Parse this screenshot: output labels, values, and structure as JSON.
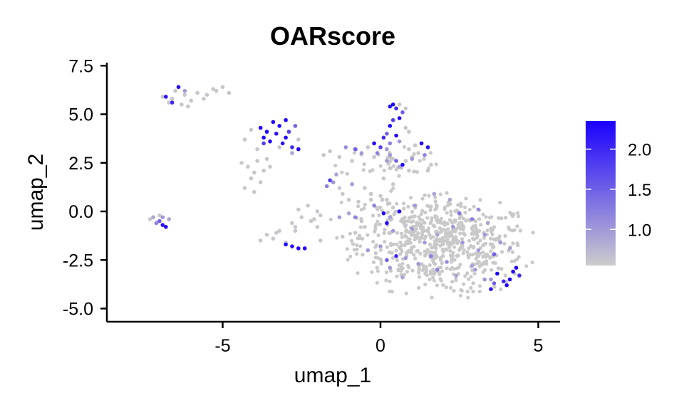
{
  "chart_data": {
    "type": "scatter",
    "title": "OARscore",
    "xlabel": "umap_1",
    "ylabel": "umap_2",
    "xlim": [
      -8.5,
      5.7
    ],
    "ylim": [
      -5.6,
      7.6
    ],
    "xticks": [
      -5,
      0,
      5
    ],
    "xtick_labels": [
      "-5",
      "0",
      "5"
    ],
    "yticks": [
      -5,
      -2.5,
      0,
      2.5,
      5,
      7.5
    ],
    "ytick_labels": [
      "-5.0",
      "-2.5",
      "0.0",
      "2.5",
      "5.0",
      "7.5"
    ],
    "grid": false,
    "legend_position": "right",
    "colorbar": {
      "range": [
        0.55,
        2.35
      ],
      "ticks": [
        1.0,
        1.5,
        2.0
      ],
      "tick_labels": [
        "1.0",
        "1.5",
        "2.0"
      ],
      "low_color": "#cccccc",
      "high_color": "#1b00ff"
    },
    "points": [
      [
        -6.9,
        5.9,
        0.6
      ],
      [
        -6.6,
        5.8,
        0.6
      ],
      [
        -6.3,
        5.5,
        0.6
      ],
      [
        -6.0,
        5.7,
        0.6
      ],
      [
        -5.8,
        6.1,
        0.6
      ],
      [
        -5.5,
        6.0,
        0.6
      ],
      [
        -5.2,
        6.2,
        0.6
      ],
      [
        -5.0,
        6.4,
        0.6
      ],
      [
        -6.7,
        5.6,
        0.6
      ],
      [
        -6.2,
        6.0,
        0.6
      ],
      [
        -5.6,
        5.8,
        0.6
      ],
      [
        -6.5,
        6.2,
        0.6
      ],
      [
        -6.1,
        5.4,
        0.6
      ],
      [
        -5.3,
        6.3,
        0.6
      ],
      [
        -4.8,
        6.1,
        0.6
      ],
      [
        -6.8,
        5.9,
        2.2
      ],
      [
        -6.4,
        6.4,
        2.3
      ],
      [
        -6.6,
        5.6,
        2.0
      ],
      [
        -6.2,
        6.2,
        1.0
      ],
      [
        -4.2,
        2.3,
        0.6
      ],
      [
        -4.0,
        2.0,
        0.6
      ],
      [
        -3.9,
        2.6,
        0.6
      ],
      [
        -4.1,
        1.7,
        0.6
      ],
      [
        -3.8,
        1.5,
        0.6
      ],
      [
        -3.7,
        2.1,
        0.6
      ],
      [
        -4.3,
        1.2,
        0.6
      ],
      [
        -4.0,
        1.0,
        0.6
      ],
      [
        -3.6,
        2.7,
        0.6
      ],
      [
        -4.4,
        2.5,
        0.6
      ],
      [
        -3.9,
        3.2,
        0.6
      ],
      [
        -4.3,
        3.7,
        0.6
      ],
      [
        -4.1,
        4.2,
        0.6
      ],
      [
        -3.5,
        2.3,
        0.6
      ],
      [
        -3.8,
        4.3,
        2.3
      ],
      [
        -3.6,
        4.1,
        2.3
      ],
      [
        -3.4,
        4.6,
        2.3
      ],
      [
        -3.2,
        4.4,
        2.3
      ],
      [
        -3.0,
        4.7,
        2.3
      ],
      [
        -3.3,
        4.0,
        2.2
      ],
      [
        -3.7,
        3.8,
        2.3
      ],
      [
        -3.1,
        3.5,
        2.2
      ],
      [
        -2.8,
        3.3,
        2.0
      ],
      [
        -2.6,
        3.2,
        2.3
      ],
      [
        -2.9,
        4.1,
        1.8
      ],
      [
        -3.5,
        3.6,
        2.3
      ],
      [
        -3.7,
        3.5,
        1.8
      ],
      [
        -3.0,
        3.8,
        2.3
      ],
      [
        -2.7,
        4.4,
        1.5
      ],
      [
        -2.8,
        3.0,
        0.9
      ],
      [
        -3.2,
        3.3,
        0.6
      ],
      [
        -2.6,
        3.7,
        0.6
      ],
      [
        -7.3,
        -0.4,
        0.6
      ],
      [
        -7.2,
        -0.3,
        0.9
      ],
      [
        -7.1,
        -0.6,
        1.2
      ],
      [
        -7.0,
        -0.5,
        1.5
      ],
      [
        -6.9,
        -0.7,
        2.2
      ],
      [
        -6.8,
        -0.8,
        2.3
      ],
      [
        -6.7,
        -0.4,
        0.9
      ],
      [
        -7.0,
        -0.2,
        0.6
      ],
      [
        -6.9,
        -0.3,
        1.0
      ],
      [
        -3.6,
        -1.2,
        0.6
      ],
      [
        -3.4,
        -1.4,
        0.6
      ],
      [
        -3.2,
        -1.0,
        0.6
      ],
      [
        -3.8,
        -1.5,
        0.6
      ],
      [
        -3.0,
        -1.6,
        0.6
      ],
      [
        -2.7,
        -1.0,
        0.6
      ],
      [
        -3.3,
        -1.1,
        0.6
      ],
      [
        -3.0,
        -1.7,
        2.3
      ],
      [
        -2.8,
        -1.8,
        2.2
      ],
      [
        -2.6,
        -1.9,
        2.3
      ],
      [
        -2.4,
        -1.9,
        2.3
      ],
      [
        -2.5,
        -0.3,
        0.6
      ],
      [
        -2.2,
        -0.5,
        0.6
      ],
      [
        -2.0,
        0.0,
        0.6
      ],
      [
        -2.3,
        0.3,
        0.6
      ],
      [
        -1.9,
        -0.2,
        0.6
      ],
      [
        -2.6,
        0.1,
        0.6
      ],
      [
        -2.8,
        -0.6,
        0.6
      ],
      [
        -1.9,
        -1.5,
        0.6
      ],
      [
        -2.0,
        -0.8,
        0.6
      ],
      [
        -2.1,
        -0.4,
        0.6
      ],
      [
        -2.7,
        -0.8,
        0.6
      ],
      [
        -1.7,
        1.3,
        1.2
      ],
      [
        -1.6,
        1.6,
        1.8
      ],
      [
        -1.5,
        1.5,
        1.0
      ],
      [
        -1.4,
        1.9,
        0.9
      ],
      [
        -1.3,
        1.2,
        0.6
      ],
      [
        -1.0,
        0.6,
        0.6
      ],
      [
        -0.9,
        1.4,
        1.0
      ],
      [
        -1.2,
        0.9,
        0.6
      ],
      [
        -0.5,
        1.2,
        0.6
      ],
      [
        -0.7,
        0.5,
        0.6
      ],
      [
        -0.3,
        0.9,
        0.6
      ],
      [
        0.1,
        1.7,
        0.6
      ],
      [
        0.4,
        1.4,
        0.6
      ],
      [
        -1.3,
        -0.3,
        1.0
      ],
      [
        -1.0,
        -0.1,
        0.9
      ],
      [
        -0.8,
        -0.3,
        1.2
      ],
      [
        -0.5,
        -0.8,
        0.6
      ],
      [
        -0.8,
        -1.1,
        0.6
      ],
      [
        -1.2,
        -1.3,
        0.6
      ],
      [
        -0.6,
        -0.5,
        0.6
      ],
      [
        -1.1,
        3.3,
        1.1
      ],
      [
        -0.8,
        3.2,
        1.5
      ],
      [
        -0.6,
        3.0,
        1.0
      ],
      [
        -0.9,
        2.6,
        0.6
      ],
      [
        -1.3,
        2.8,
        0.6
      ],
      [
        -0.4,
        3.3,
        0.6
      ],
      [
        -0.2,
        2.8,
        0.6
      ],
      [
        -1.6,
        3.1,
        0.6
      ],
      [
        -1.8,
        2.9,
        0.6
      ],
      [
        0.3,
        5.4,
        2.2
      ],
      [
        0.4,
        5.5,
        2.3
      ],
      [
        0.5,
        5.3,
        2.0
      ],
      [
        0.6,
        5.5,
        0.6
      ],
      [
        0.7,
        5.1,
        1.5
      ],
      [
        0.8,
        5.3,
        0.6
      ],
      [
        0.6,
        4.8,
        2.3
      ],
      [
        0.4,
        4.7,
        1.8
      ],
      [
        0.3,
        4.4,
        2.3
      ],
      [
        0.2,
        4.0,
        1.5
      ],
      [
        0.1,
        3.8,
        2.0
      ],
      [
        0.5,
        3.9,
        2.3
      ],
      [
        0.3,
        3.5,
        1.2
      ],
      [
        0.2,
        3.2,
        1.0
      ],
      [
        0.6,
        3.6,
        1.0
      ],
      [
        0.8,
        4.3,
        0.6
      ],
      [
        0.9,
        4.1,
        0.6
      ],
      [
        -0.2,
        3.5,
        2.3
      ],
      [
        0.0,
        3.3,
        1.8
      ],
      [
        -0.1,
        3.0,
        1.2
      ],
      [
        0.3,
        2.9,
        1.0
      ],
      [
        0.5,
        2.6,
        1.5
      ],
      [
        0.6,
        2.3,
        0.9
      ],
      [
        0.8,
        2.6,
        0.6
      ],
      [
        0.9,
        3.2,
        0.6
      ],
      [
        1.2,
        3.0,
        0.6
      ],
      [
        1.1,
        3.4,
        0.6
      ],
      [
        0.9,
        2.1,
        0.6
      ],
      [
        1.5,
        3.3,
        2.2
      ],
      [
        1.3,
        3.5,
        2.3
      ],
      [
        1.4,
        2.9,
        1.2
      ],
      [
        1.6,
        2.4,
        0.6
      ],
      [
        0.2,
        2.6,
        1.0
      ],
      [
        0.7,
        2.4,
        2.3
      ],
      [
        1.0,
        2.7,
        1.0
      ],
      [
        1.5,
        2.1,
        0.6
      ],
      [
        -0.2,
        0.3,
        1.2
      ],
      [
        0.0,
        0.8,
        0.6
      ],
      [
        -0.3,
        0.6,
        0.6
      ],
      [
        0.4,
        0.2,
        0.6
      ],
      [
        0.2,
        0.6,
        0.6
      ],
      [
        0.2,
        -0.6,
        2.3
      ],
      [
        0.6,
        0.0,
        2.3
      ],
      [
        0.3,
        -0.3,
        0.9
      ],
      [
        0.4,
        -1.0,
        1.0
      ],
      [
        0.8,
        -0.7,
        0.6
      ],
      [
        0.1,
        -0.1,
        2.3
      ],
      [
        -0.4,
        -2.0,
        1.0
      ],
      [
        0.0,
        -1.8,
        1.0
      ],
      [
        0.5,
        -2.3,
        2.0
      ],
      [
        0.3,
        -2.9,
        1.0
      ],
      [
        0.2,
        -2.5,
        1.5
      ],
      [
        1.4,
        -1.6,
        1.0
      ],
      [
        1.6,
        -2.3,
        1.2
      ],
      [
        1.8,
        -1.2,
        0.9
      ],
      [
        2.1,
        -2.6,
        1.1
      ],
      [
        2.3,
        -0.8,
        1.0
      ],
      [
        2.6,
        -1.6,
        1.0
      ],
      [
        2.9,
        -0.4,
        1.2
      ],
      [
        3.1,
        -2.0,
        1.0
      ],
      [
        3.3,
        -1.2,
        1.0
      ],
      [
        3.6,
        -2.2,
        1.5
      ],
      [
        3.8,
        -1.6,
        1.0
      ],
      [
        3.0,
        -3.0,
        1.0
      ],
      [
        1.8,
        -3.0,
        1.2
      ],
      [
        1.0,
        -0.9,
        1.0
      ],
      [
        2.5,
        -0.1,
        1.3
      ],
      [
        1.1,
        0.3,
        1.0
      ],
      [
        1.7,
        0.9,
        0.9
      ],
      [
        2.2,
        0.6,
        0.9
      ],
      [
        3.1,
        0.1,
        1.1
      ],
      [
        2.9,
        -2.8,
        0.9
      ],
      [
        0.8,
        -2.4,
        1.0
      ],
      [
        4.1,
        -1.9,
        0.9
      ],
      [
        3.5,
        -3.5,
        1.0
      ],
      [
        2.4,
        -3.3,
        0.9
      ],
      [
        1.2,
        -2.7,
        1.0
      ],
      [
        0.7,
        -3.4,
        0.9
      ],
      [
        3.4,
        -0.6,
        0.9
      ],
      [
        3.5,
        -4.0,
        2.2
      ],
      [
        3.7,
        -3.2,
        2.3
      ],
      [
        3.9,
        -3.6,
        2.0
      ],
      [
        4.0,
        -3.8,
        2.3
      ],
      [
        4.1,
        -3.5,
        2.3
      ],
      [
        4.2,
        -3.1,
        2.3
      ],
      [
        4.3,
        -2.9,
        2.3
      ],
      [
        4.4,
        -3.3,
        2.0
      ],
      [
        3.6,
        -3.7,
        1.5
      ],
      [
        3.3,
        -3.5,
        1.0
      ]
    ]
  },
  "mask_clusters": [
    {
      "cx": 2.0,
      "cy": -1.7,
      "sx": 2.6,
      "sy": 2.5,
      "n": 580,
      "angle": -0.15,
      "xmin": -1.6,
      "xmax": 4.9,
      "ymin": -4.6,
      "ymax": 1.0
    },
    {
      "cx": 0.5,
      "cy": -0.5,
      "sx": 2.2,
      "sy": 1.8,
      "n": 60,
      "angle": 0,
      "xmin": -3.0,
      "xmax": 2.0,
      "ymin": -2.5,
      "ymax": 1.6
    },
    {
      "cx": 0.3,
      "cy": 2.6,
      "sx": 1.6,
      "sy": 0.8,
      "n": 40,
      "angle": 0,
      "xmin": -2.0,
      "xmax": 1.8,
      "ymin": 1.0,
      "ymax": 4.0
    }
  ]
}
